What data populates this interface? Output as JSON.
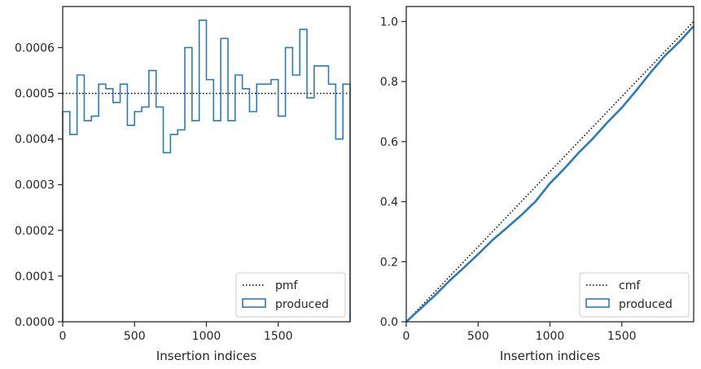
{
  "chart_data": [
    {
      "type": "step-histogram",
      "xlabel": "Insertion indices",
      "ylabel": "",
      "xlim": [
        0,
        2000
      ],
      "ylim": [
        0,
        0.00069
      ],
      "xticks": [
        0,
        500,
        1000,
        1500
      ],
      "xtick_labels": [
        "0",
        "500",
        "1000",
        "1500"
      ],
      "yticks": [
        0,
        0.0001,
        0.0002,
        0.0003,
        0.0004,
        0.0005,
        0.0006
      ],
      "ytick_labels": [
        "0.0000",
        "0.0001",
        "0.0002",
        "0.0003",
        "0.0004",
        "0.0005",
        "0.0006"
      ],
      "legend_position": "bottom-right",
      "legend": [
        "pmf",
        "produced"
      ],
      "reference_line": {
        "name": "pmf",
        "y": 0.0005,
        "style": "dotted",
        "color": "#000000"
      },
      "series": [
        {
          "name": "produced",
          "color": "#2b7bba",
          "bin_edges": [
            0,
            50,
            100,
            150,
            200,
            250,
            300,
            350,
            400,
            450,
            500,
            550,
            600,
            650,
            700,
            750,
            800,
            850,
            900,
            950,
            1000,
            1050,
            1100,
            1150,
            1200,
            1250,
            1300,
            1350,
            1400,
            1450,
            1500,
            1550,
            1600,
            1650,
            1700,
            1750,
            1800,
            1850,
            1900,
            1950,
            2000
          ],
          "values": [
            0.00046,
            0.00041,
            0.00054,
            0.00044,
            0.00045,
            0.00052,
            0.00051,
            0.00048,
            0.00052,
            0.00043,
            0.00046,
            0.00047,
            0.00055,
            0.00047,
            0.00037,
            0.00041,
            0.00042,
            0.0006,
            0.00044,
            0.00066,
            0.00053,
            0.00044,
            0.00062,
            0.00044,
            0.00054,
            0.00051,
            0.00046,
            0.00052,
            0.00052,
            0.00053,
            0.00045,
            0.0006,
            0.00054,
            0.00064,
            0.00049,
            0.00056,
            0.00056,
            0.00052,
            0.0004,
            0.00052
          ]
        }
      ]
    },
    {
      "type": "line",
      "xlabel": "Insertion indices",
      "ylabel": "",
      "xlim": [
        0,
        2000
      ],
      "ylim": [
        0,
        1.05
      ],
      "xticks": [
        0,
        500,
        1000,
        1500
      ],
      "xtick_labels": [
        "0",
        "500",
        "1000",
        "1500"
      ],
      "yticks": [
        0,
        0.2,
        0.4,
        0.6,
        0.8,
        1.0
      ],
      "ytick_labels": [
        "0.0",
        "0.2",
        "0.4",
        "0.6",
        "0.8",
        "1.0"
      ],
      "legend_position": "bottom-right",
      "legend": [
        "cmf",
        "produced"
      ],
      "series": [
        {
          "name": "cmf",
          "style": "dotted",
          "color": "#000000",
          "x": [
            0,
            2000
          ],
          "y": [
            0,
            1.0
          ]
        },
        {
          "name": "produced",
          "color": "#2b7bba",
          "x": [
            0,
            100,
            200,
            300,
            400,
            500,
            600,
            700,
            800,
            900,
            1000,
            1100,
            1200,
            1300,
            1400,
            1500,
            1600,
            1700,
            1800,
            1900,
            2000
          ],
          "y": [
            0,
            0.044,
            0.088,
            0.136,
            0.18,
            0.225,
            0.272,
            0.313,
            0.355,
            0.401,
            0.461,
            0.51,
            0.563,
            0.611,
            0.664,
            0.713,
            0.77,
            0.83,
            0.886,
            0.932,
            0.985
          ]
        }
      ]
    }
  ]
}
